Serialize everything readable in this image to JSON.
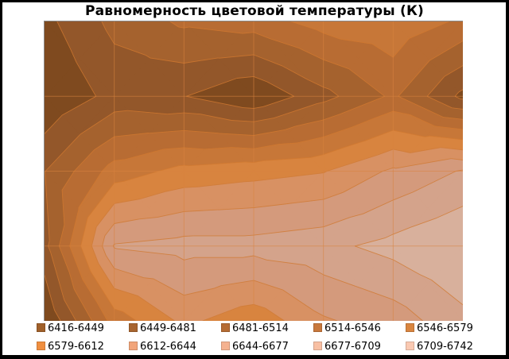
{
  "chart_data": {
    "type": "heatmap",
    "subtype": "contour",
    "title": "Равномерность  цветовой температуры (К)",
    "xlabel": "",
    "ylabel": "",
    "grid": true,
    "legend_position": "bottom",
    "x": [
      0,
      1,
      2,
      3,
      4,
      5,
      6
    ],
    "y": [
      0,
      1,
      2,
      3,
      4
    ],
    "z": [
      [
        6440,
        6490,
        6520,
        6530,
        6560,
        6570,
        6540
      ],
      [
        6418,
        6460,
        6450,
        6420,
        6470,
        6520,
        6440
      ],
      [
        6480,
        6560,
        6590,
        6600,
        6610,
        6650,
        6680
      ],
      [
        6470,
        6680,
        6690,
        6690,
        6700,
        6720,
        6742
      ],
      [
        6416,
        6560,
        6620,
        6590,
        6640,
        6660,
        6700
      ]
    ],
    "levels": [
      6416,
      6449,
      6481,
      6514,
      6546,
      6579,
      6612,
      6644,
      6677,
      6709,
      6742
    ],
    "legend": [
      {
        "label": "6416-6449",
        "color": "#7f4a1f"
      },
      {
        "label": "6449-6481",
        "color": "#93572a"
      },
      {
        "label": "6481-6514",
        "color": "#a5622e"
      },
      {
        "label": "6514-6546",
        "color": "#b86c33"
      },
      {
        "label": "6546-6579",
        "color": "#c77738"
      },
      {
        "label": "6579-6612",
        "color": "#d8843f"
      },
      {
        "label": "6612-6644",
        "color": "#d89163"
      },
      {
        "label": "6644-6677",
        "color": "#d49a7c"
      },
      {
        "label": "6677-6709",
        "color": "#d4a38b"
      },
      {
        "label": "6709-6742",
        "color": "#d8b09c"
      }
    ]
  },
  "legend_swatches": [
    "#a0602a",
    "#a86530",
    "#b56c34",
    "#c8783c",
    "#d9853f",
    "#f08f40",
    "#f2a57a",
    "#f5b290",
    "#f8c0a4",
    "#fac9b2"
  ]
}
